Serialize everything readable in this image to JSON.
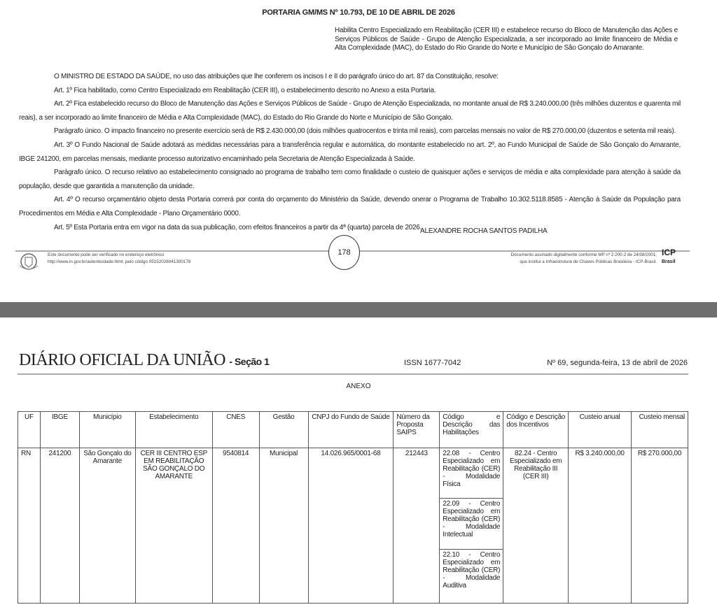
{
  "portaria": {
    "title": "PORTARIA GM/MS Nº 10.793, DE 10 DE ABRIL DE 2026",
    "ementa": "Habilita Centro Especializado em Reabilitação (CER III) e estabelece recurso do Bloco de Manutenção das Ações e Serviços Públicos de Saúde - Grupo de Atenção Especializada, a ser incorporado ao limite financeiro de Média e Alta Complexidade (MAC), do Estado do Rio Grande do Norte e Município de São Gonçalo do Amarante.",
    "paragraphs": [
      "O MINISTRO DE ESTADO DA SAÚDE, no uso das atribuições que lhe conferem os incisos I e II do parágrafo único do art. 87 da Constituição, resolve:",
      "Art. 1º Fica habilitado, como Centro Especializado em Reabilitação (CER III), o estabelecimento descrito no Anexo a esta Portaria.",
      "Art. 2º Fica estabelecido recurso do Bloco de Manutenção das Ações e Serviços Públicos de Saúde - Grupo de Atenção Especializada, no montante anual de R$ 3.240.000,00 (três milhões duzentos e quarenta mil reais), a ser incorporado ao limite financeiro de Média e Alta Complexidade (MAC), do Estado do Rio Grande do Norte e Município de São Gonçalo.",
      "Parágrafo único. O impacto financeiro no presente exercício será de R$ 2.430.000,00 (dois milhões quatrocentos e trinta mil reais), com parcelas mensais no valor de R$ 270.000,00 (duzentos e setenta mil reais).",
      "Art. 3º O Fundo Nacional de Saúde adotará as medidas necessárias para a transferência regular e automática, do montante estabelecido no art. 2º, ao Fundo Municipal de Saúde de São Gonçalo do Amarante, IBGE 241200, em parcelas mensais, mediante processo autorizativo encaminhado pela Secretaria de Atenção Especializada à Saúde.",
      "Parágrafo único. O recurso relativo ao estabelecimento consignado ao programa de trabalho tem como finalidade o custeio de quaisquer ações e serviços de média e alta complexidade para atenção à saúde da população, desde que garantida a manutenção da unidade.",
      "Art. 4º O recurso orçamentário objeto desta Portaria correrá por conta do orçamento do Ministério da Saúde, devendo onerar o Programa de Trabalho 10.302.5118.8585 - Atenção à Saúde da População para Procedimentos em Média e Alta Complexidade - Plano Orçamentário 0000.",
      "Art. 5º Esta Portaria entra em vigor na data da sua publicação, com efeitos financeiros a partir da 4ª (quarta) parcela de 2026."
    ],
    "signature": "ALEXANDRE ROCHA SANTOS PADILHA"
  },
  "footer": {
    "verify_line1": "Este documento pode ser verificado no endereço eletrônico",
    "verify_line2": "http://www.in.gov.br/autenticidade.html, pelo código 05152026041300178",
    "page_number": "178",
    "signed_line1": "Documento assinado digitalmente conforme MP nº 2.200-2 de 24/08/2001,",
    "signed_line2": "que institui a Infraestrutura de Chaves Públicas Brasileira - ICP-Brasil.",
    "icp_logo": "ICP Brasil"
  },
  "header2": {
    "title": "DIÁRIO OFICIAL DA UNIÃO",
    "section": "- Seção 1",
    "issn": "ISSN 1677-7042",
    "edition": "Nº 69, segunda-feira, 13 de abril de 2026"
  },
  "anexo": {
    "title": "ANEXO",
    "headers": [
      "UF",
      "IBGE",
      "Município",
      "Estabelecimento",
      "CNES",
      "Gestão",
      "CNPJ do Fundo de Saúde",
      "Número da Proposta SAIPS",
      "Código e Descrição das Habilitações",
      "Código e Descrição dos Incentivos",
      "Custeio anual",
      "Custeio mensal"
    ],
    "row": {
      "uf": "RN",
      "ibge": "241200",
      "municipio": "São Gonçalo do Amarante",
      "estabelecimento": "CER III CENTRO ESP EM REABILITAÇÃO SÃO GONÇALO DO AMARANTE",
      "cnes": "9540814",
      "gestao": "Municipal",
      "cnpj": "14.026.965/0001-68",
      "saips": "212443",
      "habilitacoes": [
        "22.08 - Centro Especializado em Reabilitação (CER) - Modalidade Física",
        "22.09 - Centro Especializado em Reabilitação (CER) - Modalidade Intelectual",
        "22.10 - Centro Especializado em Reabilitação (CER) - Modalidade Auditiva"
      ],
      "incentivos": "82.24 - Centro Especializado em Reabilitação III (CER III)",
      "custeio_anual": "R$ 3.240.000,00",
      "custeio_mensal": "R$ 270.000,00"
    }
  }
}
